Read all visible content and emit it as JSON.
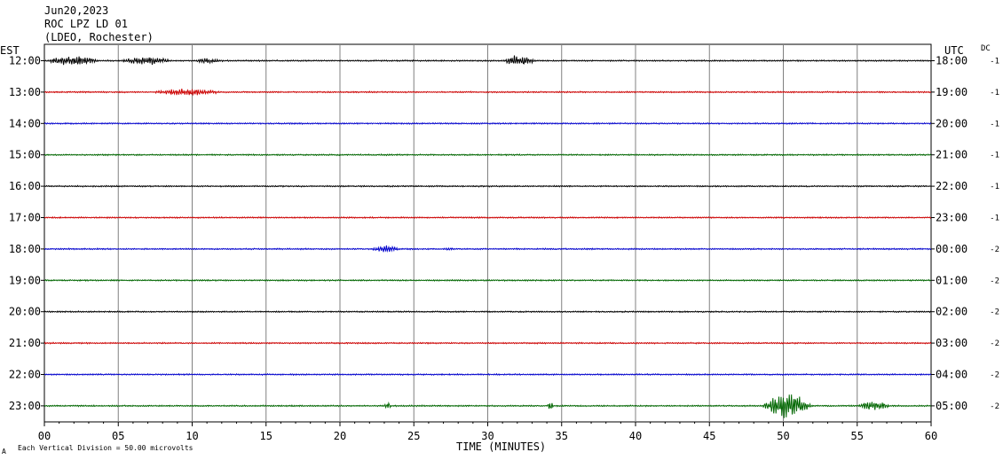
{
  "header": {
    "date": "Jun20,2023",
    "station": "ROC LPZ LD 01",
    "network": "(LDEO, Rochester)"
  },
  "left_axis_label": "EST",
  "right_axis_label": "UTC",
  "dc_label": "DC",
  "footer": {
    "scale_note": "Each Vertical Division =   50.00 microvolts",
    "corner_mark": "A"
  },
  "chart_data": {
    "type": "line",
    "xlabel": "TIME (MINUTES)",
    "xlim": [
      0,
      60
    ],
    "x_ticks": [
      "00",
      "05",
      "10",
      "15",
      "20",
      "25",
      "30",
      "35",
      "40",
      "45",
      "50",
      "55",
      "60"
    ],
    "colors": [
      "#000000",
      "#cc0000",
      "#0000cc",
      "#006600"
    ],
    "rows": [
      {
        "est": "12:00",
        "utc": "18:00",
        "dc": "-1",
        "color": "#000000",
        "events": [
          [
            0,
            5,
            6
          ],
          [
            5,
            10,
            5
          ],
          [
            10,
            13,
            3
          ],
          [
            31,
            34,
            7
          ]
        ]
      },
      {
        "est": "13:00",
        "utc": "19:00",
        "dc": "-1",
        "color": "#cc0000",
        "events": [
          [
            7,
            14,
            4
          ]
        ]
      },
      {
        "est": "14:00",
        "utc": "20:00",
        "dc": "-1",
        "color": "#0000cc",
        "events": []
      },
      {
        "est": "15:00",
        "utc": "21:00",
        "dc": "-1",
        "color": "#006600",
        "events": []
      },
      {
        "est": "16:00",
        "utc": "22:00",
        "dc": "-1",
        "color": "#000000",
        "events": []
      },
      {
        "est": "17:00",
        "utc": "23:00",
        "dc": "-1",
        "color": "#cc0000",
        "events": []
      },
      {
        "est": "18:00",
        "utc": "00:00",
        "dc": "-2",
        "color": "#0000cc",
        "events": [
          [
            22,
            25,
            4
          ],
          [
            27,
            28,
            2
          ]
        ]
      },
      {
        "est": "19:00",
        "utc": "01:00",
        "dc": "-2",
        "color": "#006600",
        "events": []
      },
      {
        "est": "20:00",
        "utc": "02:00",
        "dc": "-2",
        "color": "#000000",
        "events": []
      },
      {
        "est": "21:00",
        "utc": "03:00",
        "dc": "-2",
        "color": "#cc0000",
        "events": []
      },
      {
        "est": "22:00",
        "utc": "04:00",
        "dc": "-2",
        "color": "#0000cc",
        "events": []
      },
      {
        "est": "23:00",
        "utc": "05:00",
        "dc": "-2",
        "color": "#006600",
        "events": [
          [
            23,
            23.6,
            5
          ],
          [
            34,
            34.6,
            5
          ],
          [
            48.5,
            53,
            15
          ],
          [
            55,
            58,
            6
          ]
        ]
      }
    ]
  }
}
